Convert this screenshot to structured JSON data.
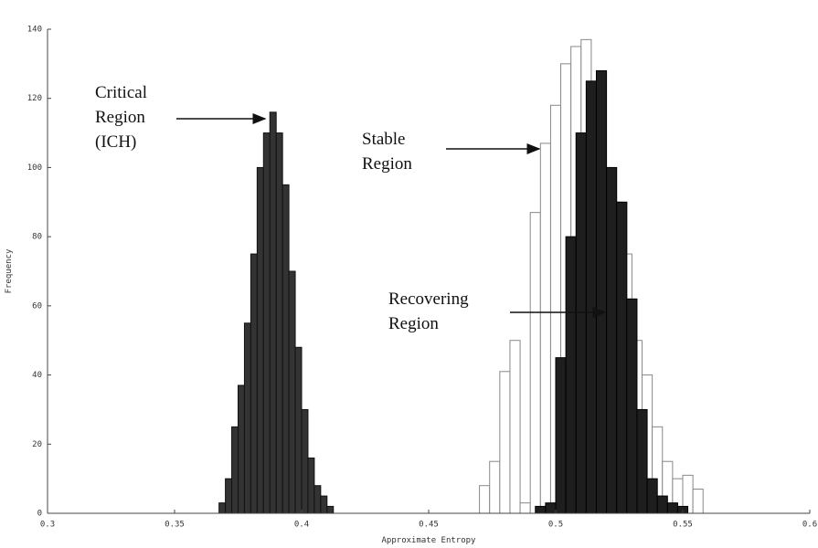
{
  "chart_data": {
    "type": "histogram",
    "xlabel": "Approximate Entropy",
    "ylabel": "Frequency",
    "xlim": [
      0.3,
      0.6
    ],
    "ylim": [
      0,
      140
    ],
    "xticks": [
      0.3,
      0.35,
      0.4,
      0.45,
      0.5,
      0.55,
      0.6
    ],
    "yticks": [
      0,
      20,
      40,
      60,
      80,
      100,
      120,
      140
    ],
    "series": [
      {
        "color": "#ffffff",
        "edgecolor": "#888888",
        "bins": [
          0.47,
          0.474,
          0.478,
          0.482,
          0.486,
          0.49,
          0.494,
          0.498,
          0.502,
          0.506,
          0.51,
          0.514,
          0.518,
          0.522,
          0.526,
          0.53,
          0.534,
          0.538,
          0.542,
          0.546,
          0.55,
          0.554,
          0.558
        ],
        "values": [
          8,
          15,
          41,
          50,
          3,
          87,
          107,
          118,
          130,
          135,
          137,
          110,
          100,
          90,
          75,
          50,
          40,
          25,
          15,
          10,
          11,
          7
        ]
      },
      {
        "color": "#1e1e1e",
        "edgecolor": "#000000",
        "bins": [
          0.492,
          0.496,
          0.5,
          0.504,
          0.508,
          0.512,
          0.516,
          0.52,
          0.524,
          0.528,
          0.532,
          0.536,
          0.54,
          0.544,
          0.548,
          0.552
        ],
        "values": [
          2,
          3,
          45,
          80,
          110,
          125,
          128,
          100,
          90,
          62,
          30,
          10,
          5,
          3,
          2
        ]
      },
      {
        "color": "#333333",
        "edgecolor": "#111111",
        "bins": [
          0.3675,
          0.37,
          0.3725,
          0.375,
          0.3775,
          0.38,
          0.3825,
          0.385,
          0.3875,
          0.39,
          0.3925,
          0.395,
          0.3975,
          0.4,
          0.4025,
          0.405,
          0.4075,
          0.41,
          0.4125
        ],
        "values": [
          3,
          10,
          25,
          37,
          55,
          75,
          100,
          110,
          116,
          110,
          95,
          70,
          48,
          30,
          16,
          8,
          5,
          2
        ]
      }
    ],
    "annotations": [
      {
        "lines": [
          "Critical",
          "Region",
          "(ICH)"
        ]
      },
      {
        "lines": [
          "Stable",
          "Region"
        ]
      },
      {
        "lines": [
          "Recovering",
          "Region"
        ]
      }
    ]
  }
}
